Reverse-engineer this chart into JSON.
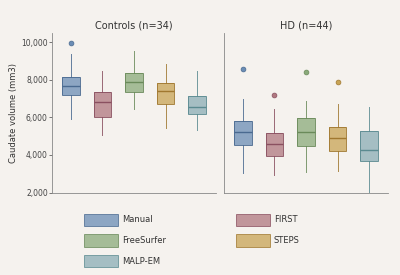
{
  "title_left": "Controls (n=34)",
  "title_right": "HD (n=44)",
  "ylabel": "Caudate volume (mm3)",
  "ylim": [
    2000,
    10500
  ],
  "yticks": [
    2000,
    4000,
    6000,
    8000,
    10000
  ],
  "ytick_labels": [
    "2,000",
    "4,000",
    "6,000",
    "8,000",
    "10,000"
  ],
  "colors": {
    "Manual": "#6b8db5",
    "FIRST": "#b07880",
    "FreeSurfer": "#8aaa7a",
    "STEPS": "#c8a455",
    "MALP-EM": "#8aadb5"
  },
  "edge_colors": {
    "Manual": "#4a6a90",
    "FIRST": "#8a5060",
    "FreeSurfer": "#6a8a5a",
    "STEPS": "#a07830",
    "MALP-EM": "#5a8a90"
  },
  "controls": {
    "Manual": {
      "q1": 7200,
      "median": 7700,
      "q3": 8150,
      "whislo": 5900,
      "whishi": 9400,
      "fliers": [
        9980
      ]
    },
    "FIRST": {
      "q1": 6050,
      "median": 6800,
      "q3": 7350,
      "whislo": 5050,
      "whishi": 8450,
      "fliers": []
    },
    "FreeSurfer": {
      "q1": 7350,
      "median": 7900,
      "q3": 8350,
      "whislo": 6450,
      "whishi": 9550,
      "fliers": []
    },
    "STEPS": {
      "q1": 6700,
      "median": 7400,
      "q3": 7850,
      "whislo": 5450,
      "whishi": 8850,
      "fliers": []
    },
    "MALP-EM": {
      "q1": 6200,
      "median": 6550,
      "q3": 7150,
      "whislo": 5350,
      "whishi": 8450,
      "fliers": []
    }
  },
  "hd": {
    "Manual": {
      "q1": 4550,
      "median": 5200,
      "q3": 5800,
      "whislo": 3050,
      "whishi": 7000,
      "fliers": [
        8600
      ]
    },
    "FIRST": {
      "q1": 3950,
      "median": 4600,
      "q3": 5150,
      "whislo": 2950,
      "whishi": 6450,
      "fliers": [
        7200
      ]
    },
    "FreeSurfer": {
      "q1": 4500,
      "median": 5250,
      "q3": 5950,
      "whislo": 3100,
      "whishi": 6900,
      "fliers": [
        8400
      ]
    },
    "STEPS": {
      "q1": 4200,
      "median": 4900,
      "q3": 5500,
      "whislo": 3150,
      "whishi": 6700,
      "fliers": [
        7900
      ]
    },
    "MALP-EM": {
      "q1": 3700,
      "median": 4250,
      "q3": 5300,
      "whislo": 1950,
      "whishi": 6550,
      "fliers": []
    }
  },
  "bg_color": "#ffffff",
  "fig_bg_color": "#f5f2ee"
}
